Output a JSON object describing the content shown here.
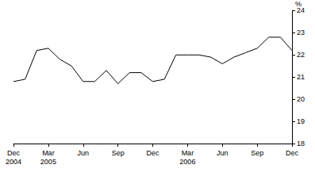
{
  "chart_data": {
    "type": "line",
    "ylabel": "%",
    "categories": [
      "Dec\n2004",
      null,
      null,
      "Mar\n2005",
      null,
      null,
      "Jun",
      null,
      null,
      "Sep",
      null,
      null,
      "Dec",
      null,
      null,
      "Mar\n2006",
      null,
      null,
      "Jun",
      null,
      null,
      "Sep",
      null,
      null,
      "Dec"
    ],
    "values": [
      20.8,
      20.9,
      22.2,
      22.3,
      21.8,
      21.5,
      20.8,
      20.8,
      21.3,
      20.7,
      21.2,
      21.2,
      20.8,
      20.9,
      22.0,
      22.0,
      22.0,
      21.9,
      21.6,
      21.9,
      22.1,
      22.3,
      22.8,
      22.8,
      22.2
    ],
    "color": "#000000",
    "ylim": [
      18,
      24
    ],
    "yticks": [
      18,
      19,
      20,
      21,
      22,
      23,
      24
    ],
    "grid": false
  }
}
